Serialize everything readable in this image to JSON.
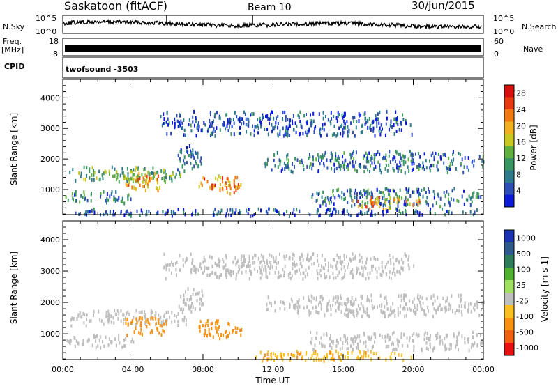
{
  "header": {
    "station": "Saskatoon (fitACF)",
    "beam": "Beam 10",
    "date": "30/Jun/2015"
  },
  "strip_labels": {
    "nsky": "N.Sky",
    "nsky_top": "10^5",
    "nsky_bottom": "10^0",
    "nsearch": "N.Search",
    "nsearch_top": "10^5",
    "nsearch_bottom": "10^0",
    "freq": "Freq.",
    "freq_unit": "[MHz]",
    "freq_top": "18",
    "freq_bottom": "8",
    "nave": "Nave",
    "nave_top": "60",
    "nave_bottom": "0",
    "cpid": "CPID",
    "cpid_value": "twofsound -3503"
  },
  "chart_data": [
    {
      "type": "heatmap",
      "panel": "power",
      "xlabel": "",
      "ylabel": "Slant Range [km]",
      "xlim_hours": [
        0,
        24
      ],
      "ylim": [
        180,
        4600
      ],
      "y_ticks": [
        1000,
        2000,
        3000,
        4000
      ],
      "colorbar": {
        "label": "Power [dB]",
        "ticks": [
          "4",
          "8",
          "12",
          "16",
          "20",
          "24",
          "28"
        ],
        "colors": [
          "#0a1ad6",
          "#2d4fb5",
          "#2f7a8a",
          "#3a9660",
          "#60b040",
          "#c8c820",
          "#f0b020",
          "#f07a10",
          "#e83a10",
          "#d81010"
        ]
      },
      "regions": [
        {
          "t": [
            0.3,
            7.2
          ],
          "r": [
            1300,
            1800
          ],
          "value": 14
        },
        {
          "t": [
            3.5,
            6.0
          ],
          "r": [
            1000,
            1600
          ],
          "value": 22
        },
        {
          "t": [
            0.0,
            4.0
          ],
          "r": [
            600,
            1000
          ],
          "value": 10
        },
        {
          "t": [
            7.7,
            10.2
          ],
          "r": [
            900,
            1500
          ],
          "value": 24
        },
        {
          "t": [
            6.5,
            8.0
          ],
          "r": [
            1700,
            2500
          ],
          "value": 9
        },
        {
          "t": [
            11.5,
            24.0
          ],
          "r": [
            1600,
            2300
          ],
          "value": 9
        },
        {
          "t": [
            14.0,
            24.0
          ],
          "r": [
            500,
            1100
          ],
          "value": 9
        },
        {
          "t": [
            16.5,
            20.5
          ],
          "r": [
            400,
            800
          ],
          "value": 22
        },
        {
          "t": [
            0.0,
            24.0
          ],
          "r": [
            180,
            420
          ],
          "value": 7
        },
        {
          "t": [
            5.5,
            20.0
          ],
          "r": [
            2800,
            3600
          ],
          "value": 6
        }
      ]
    },
    {
      "type": "heatmap",
      "panel": "velocity",
      "xlabel": "Time UT",
      "ylabel": "Slant Range [km]",
      "xlim_hours": [
        0,
        24
      ],
      "ylim": [
        180,
        4600
      ],
      "y_ticks": [
        1000,
        2000,
        3000,
        4000
      ],
      "x_ticks": [
        "00:00",
        "04:00",
        "08:00",
        "12:00",
        "16:00",
        "20:00",
        "00:00"
      ],
      "colorbar": {
        "label": "Velocity [m s-1]",
        "ticks": [
          "1000",
          "500",
          "100",
          "25",
          "-25",
          "-100",
          "-500",
          "-1000"
        ],
        "colors": [
          "#1a32b4",
          "#2d5a8a",
          "#2e7d5a",
          "#50b030",
          "#a0e060",
          "#bebebe",
          "#f8c020",
          "#f89010",
          "#f06010",
          "#e81010"
        ]
      },
      "regions": [
        {
          "t": [
            0.3,
            7.2
          ],
          "r": [
            1300,
            1800
          ],
          "value": 0
        },
        {
          "t": [
            3.5,
            6.0
          ],
          "r": [
            1000,
            1600
          ],
          "value": -200
        },
        {
          "t": [
            0.0,
            4.0
          ],
          "r": [
            600,
            1000
          ],
          "value": 0
        },
        {
          "t": [
            7.7,
            10.2
          ],
          "r": [
            900,
            1500
          ],
          "value": -300
        },
        {
          "t": [
            6.5,
            8.0
          ],
          "r": [
            1700,
            2500
          ],
          "value": 0
        },
        {
          "t": [
            11.5,
            24.0
          ],
          "r": [
            1600,
            2300
          ],
          "value": 0
        },
        {
          "t": [
            14.0,
            24.0
          ],
          "r": [
            500,
            1100
          ],
          "value": 0
        },
        {
          "t": [
            11.0,
            20.0
          ],
          "r": [
            180,
            500
          ],
          "value": -80
        },
        {
          "t": [
            5.5,
            20.0
          ],
          "r": [
            2800,
            3600
          ],
          "value": 0
        }
      ]
    }
  ]
}
